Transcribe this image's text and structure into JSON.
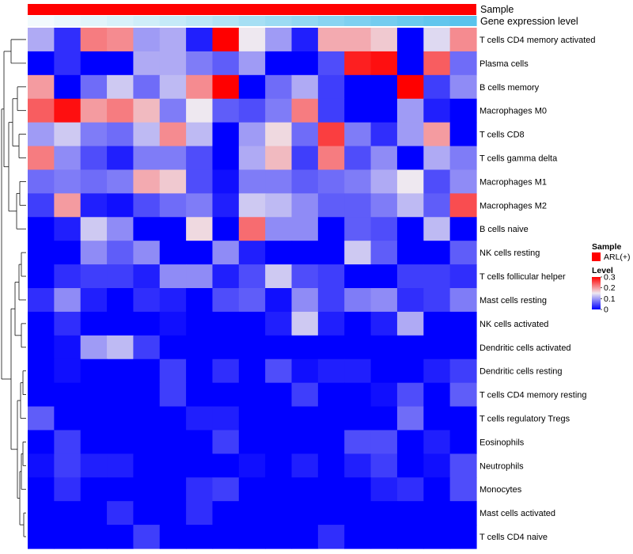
{
  "chart_data": {
    "type": "heatmap",
    "color_scale": {
      "min": 0,
      "max": 0.3,
      "low_color": "#0000FF",
      "mid_color": "#EEE8F0",
      "high_color": "#FF0000",
      "mid_value": 0.15
    },
    "column_annotations": {
      "sample": {
        "name": "Sample",
        "label": "ARL(+)",
        "color": "#FF0000"
      },
      "gene_expression": {
        "name": "Gene expression level",
        "colors": [
          "#F2FAFD",
          "#EAF7FC",
          "#E1F4FB",
          "#D8F1FA",
          "#CFEEF9",
          "#C5EAF8",
          "#BBE7F7",
          "#B1E3F5",
          "#A6DFF4",
          "#9CDBF3",
          "#92D8F2",
          "#88D4F1",
          "#7ED0F0",
          "#74CCEF",
          "#6AC9EE",
          "#62C6ED",
          "#5AC3EC"
        ]
      }
    },
    "rows": [
      "T cells CD4 memory activated",
      "Plasma cells",
      "B cells memory",
      "Macrophages M0",
      "T cells CD8",
      "T cells gamma delta",
      "Macrophages M1",
      "Macrophages M2",
      "B cells naive",
      "NK cells resting",
      "T cells follicular helper",
      "Mast cells resting",
      "NK cells activated",
      "Dendritic cells activated",
      "Dendritic cells resting",
      "T cells CD4 memory resting",
      "T cells regulatory  Tregs",
      "Eosinophils",
      "Neutrophils",
      "Monocytes",
      "Mast cells activated",
      "T cells CD4 naive"
    ],
    "values": [
      [
        0.11,
        0.03,
        0.22,
        0.21,
        0.1,
        0.11,
        0.02,
        0.3,
        0.15,
        0.1,
        0.02,
        0.19,
        0.19,
        0.17,
        0.0,
        0.14,
        0.21
      ],
      [
        0.0,
        0.03,
        0.0,
        0.0,
        0.11,
        0.11,
        0.08,
        0.06,
        0.1,
        0.0,
        0.0,
        0.05,
        0.28,
        0.29,
        0.0,
        0.24,
        0.07
      ],
      [
        0.2,
        0.0,
        0.07,
        0.13,
        0.07,
        0.12,
        0.21,
        0.3,
        0.0,
        0.07,
        0.11,
        0.04,
        0.0,
        0.0,
        0.3,
        0.04,
        0.09
      ],
      [
        0.24,
        0.29,
        0.2,
        0.22,
        0.18,
        0.08,
        0.15,
        0.06,
        0.05,
        0.08,
        0.22,
        0.04,
        0.0,
        0.0,
        0.1,
        0.02,
        0.0
      ],
      [
        0.1,
        0.13,
        0.08,
        0.07,
        0.12,
        0.21,
        0.12,
        0.0,
        0.1,
        0.16,
        0.07,
        0.26,
        0.08,
        0.03,
        0.1,
        0.2,
        0.0
      ],
      [
        0.22,
        0.09,
        0.05,
        0.02,
        0.08,
        0.08,
        0.05,
        0.0,
        0.11,
        0.18,
        0.04,
        0.22,
        0.05,
        0.09,
        0.0,
        0.11,
        0.08
      ],
      [
        0.07,
        0.08,
        0.07,
        0.08,
        0.19,
        0.17,
        0.05,
        0.01,
        0.08,
        0.08,
        0.06,
        0.07,
        0.08,
        0.11,
        0.15,
        0.05,
        0.09
      ],
      [
        0.04,
        0.2,
        0.02,
        0.01,
        0.05,
        0.07,
        0.08,
        0.02,
        0.13,
        0.12,
        0.09,
        0.06,
        0.06,
        0.08,
        0.12,
        0.06,
        0.25
      ],
      [
        0.0,
        0.02,
        0.13,
        0.09,
        0.0,
        0.0,
        0.16,
        0.0,
        0.23,
        0.09,
        0.09,
        0.0,
        0.06,
        0.05,
        0.0,
        0.12,
        0.0
      ],
      [
        0.0,
        0.0,
        0.09,
        0.06,
        0.09,
        0.0,
        0.0,
        0.09,
        0.02,
        0.0,
        0.0,
        0.0,
        0.13,
        0.06,
        0.0,
        0.0,
        0.06
      ],
      [
        0.0,
        0.03,
        0.04,
        0.04,
        0.02,
        0.09,
        0.09,
        0.02,
        0.05,
        0.13,
        0.05,
        0.04,
        0.0,
        0.0,
        0.04,
        0.04,
        0.03
      ],
      [
        0.03,
        0.09,
        0.02,
        0.0,
        0.03,
        0.02,
        0.0,
        0.05,
        0.06,
        0.01,
        0.09,
        0.04,
        0.08,
        0.09,
        0.03,
        0.04,
        0.08
      ],
      [
        0.0,
        0.03,
        0.0,
        0.0,
        0.0,
        0.01,
        0.0,
        0.0,
        0.0,
        0.02,
        0.13,
        0.02,
        0.0,
        0.02,
        0.11,
        0.0,
        0.0
      ],
      [
        0.0,
        0.01,
        0.1,
        0.12,
        0.04,
        0.0,
        0.0,
        0.0,
        0.0,
        0.0,
        0.0,
        0.0,
        0.0,
        0.0,
        0.0,
        0.0,
        0.0
      ],
      [
        0.0,
        0.01,
        0.0,
        0.0,
        0.0,
        0.04,
        0.0,
        0.03,
        0.0,
        0.05,
        0.01,
        0.02,
        0.02,
        0.0,
        0.0,
        0.02,
        0.04
      ],
      [
        0.0,
        0.0,
        0.0,
        0.0,
        0.0,
        0.04,
        0.0,
        0.0,
        0.0,
        0.0,
        0.04,
        0.0,
        0.0,
        0.01,
        0.05,
        0.0,
        0.06
      ],
      [
        0.06,
        0.0,
        0.0,
        0.0,
        0.0,
        0.0,
        0.02,
        0.02,
        0.0,
        0.0,
        0.0,
        0.0,
        0.0,
        0.0,
        0.07,
        0.0,
        0.0
      ],
      [
        0.0,
        0.04,
        0.0,
        0.0,
        0.0,
        0.0,
        0.0,
        0.04,
        0.0,
        0.0,
        0.0,
        0.0,
        0.05,
        0.05,
        0.0,
        0.02,
        0.0
      ],
      [
        0.01,
        0.04,
        0.02,
        0.02,
        0.0,
        0.0,
        0.0,
        0.0,
        0.01,
        0.0,
        0.02,
        0.0,
        0.02,
        0.04,
        0.0,
        0.01,
        0.05
      ],
      [
        0.0,
        0.03,
        0.0,
        0.0,
        0.0,
        0.0,
        0.03,
        0.04,
        0.0,
        0.0,
        0.0,
        0.0,
        0.0,
        0.02,
        0.03,
        0.0,
        0.05
      ],
      [
        0.0,
        0.0,
        0.0,
        0.03,
        0.0,
        0.0,
        0.03,
        0.0,
        0.0,
        0.0,
        0.0,
        0.0,
        0.0,
        0.0,
        0.0,
        0.0,
        0.0
      ],
      [
        0.0,
        0.0,
        0.0,
        0.0,
        0.04,
        0.0,
        0.0,
        0.0,
        0.0,
        0.0,
        0.0,
        0.03,
        0.0,
        0.0,
        0.0,
        0.0,
        0.0
      ]
    ],
    "legend": {
      "sample_title": "Sample",
      "level_title": "Level",
      "ticks": [
        "0.3",
        "0.2",
        "0.1",
        "0"
      ]
    }
  }
}
